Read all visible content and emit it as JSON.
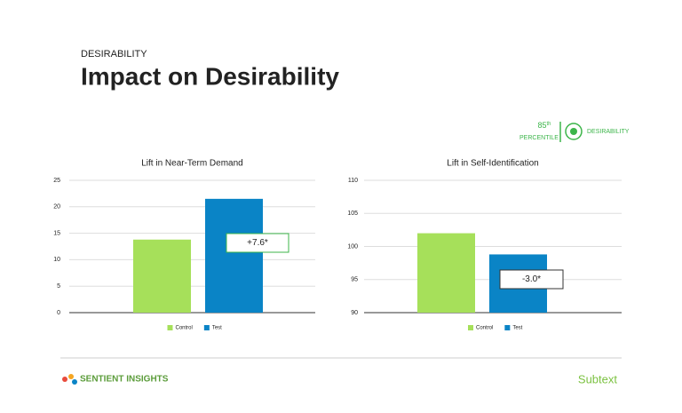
{
  "header": {
    "section": "DESIRABILITY",
    "title": "Impact on Desirability"
  },
  "badge": {
    "rank": "85",
    "rank_suffix": "th",
    "label": "PERCENTILE",
    "category": "DESIRABILITY"
  },
  "chart_data": [
    {
      "type": "bar",
      "title": "Lift in Near-Term Demand",
      "series": [
        {
          "name": "Control",
          "color": "#a6e05a",
          "values": [
            13.8
          ]
        },
        {
          "name": "Test",
          "color": "#0a84c6",
          "values": [
            21.5
          ]
        }
      ],
      "ylim": [
        0,
        25
      ],
      "yticks": [
        0,
        5,
        10,
        15,
        20,
        25
      ],
      "grid": true,
      "annotation": "+7.6*",
      "annotation_color": "#3cb54a"
    },
    {
      "type": "bar",
      "title": "Lift in Self-Identification",
      "series": [
        {
          "name": "Control",
          "color": "#a6e05a",
          "values": [
            102
          ]
        },
        {
          "name": "Test",
          "color": "#0a84c6",
          "values": [
            98.8
          ]
        }
      ],
      "ylim": [
        90,
        110
      ],
      "yticks": [
        90,
        95,
        100,
        105,
        110
      ],
      "grid": true,
      "annotation": "-3.0*",
      "annotation_color": "#333333"
    }
  ],
  "footer": {
    "brand": "SENTIENT INSIGHTS",
    "product": "Subtext"
  }
}
